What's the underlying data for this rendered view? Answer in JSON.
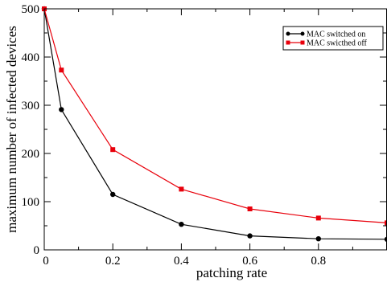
{
  "chart_data": {
    "type": "line",
    "xlabel": "patching rate",
    "ylabel": "maximum number of infected devices",
    "xlim": [
      0,
      1.0
    ],
    "ylim": [
      0,
      500
    ],
    "xticks": [
      0,
      0.2,
      0.4,
      0.6,
      0.8
    ],
    "xtick_labels": [
      "0",
      "0.2",
      "0.4",
      "0.6",
      "0.8"
    ],
    "yticks": [
      0,
      100,
      200,
      300,
      400,
      500
    ],
    "ytick_labels": [
      "0",
      "100",
      "200",
      "300",
      "400",
      "500"
    ],
    "grid": false,
    "legend_position": "top-right",
    "series": [
      {
        "name": "MAC switched on",
        "color": "#000000",
        "marker": "circle",
        "x": [
          0,
          0.05,
          0.2,
          0.4,
          0.6,
          0.8,
          1.0
        ],
        "y": [
          500,
          291,
          115,
          53,
          29,
          23,
          22
        ]
      },
      {
        "name": "MAC swicthed off",
        "color": "#e8000b",
        "marker": "square",
        "x": [
          0,
          0.05,
          0.2,
          0.4,
          0.6,
          0.8,
          1.0
        ],
        "y": [
          500,
          373,
          208,
          126,
          85,
          66,
          56
        ]
      }
    ]
  }
}
